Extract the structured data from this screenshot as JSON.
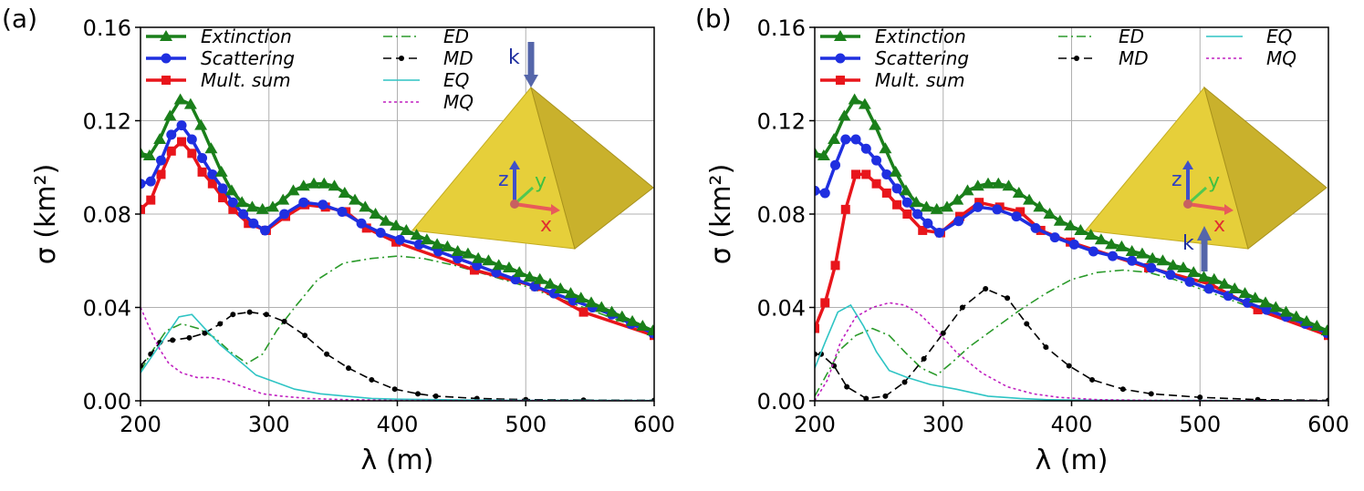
{
  "chart_data": [
    {
      "type": "line",
      "panel_label": "(a)",
      "xlabel": "λ (m)",
      "ylabel": "σ (km²)",
      "xlim": [
        200,
        600
      ],
      "ylim": [
        0,
        0.16
      ],
      "xticks": [
        "200",
        "300",
        "400",
        "500",
        "600"
      ],
      "yticks": [
        "0.00",
        "0.04",
        "0.08",
        "0.12",
        "0.16"
      ],
      "grid": true,
      "legend": "top-left and top-center, two blocks",
      "inset": {
        "k": "k",
        "x": "x",
        "y": "y",
        "z": "z",
        "k_direction": "down",
        "k_position": "top"
      },
      "series": [
        {
          "name": "Extinction",
          "color": "#1a7f1a",
          "marker": "triangle",
          "x": [
            200,
            207,
            215,
            223,
            231,
            239,
            247,
            255,
            263,
            271,
            279,
            287,
            295,
            303,
            311,
            319,
            327,
            335,
            343,
            351,
            359,
            367,
            375,
            383,
            391,
            399,
            407,
            415,
            423,
            431,
            439,
            447,
            455,
            463,
            471,
            479,
            487,
            495,
            503,
            511,
            519,
            527,
            535,
            543,
            551,
            559,
            567,
            575,
            583,
            591,
            599
          ],
          "y": [
            0.106,
            0.105,
            0.112,
            0.122,
            0.129,
            0.127,
            0.118,
            0.108,
            0.098,
            0.09,
            0.085,
            0.083,
            0.082,
            0.083,
            0.086,
            0.09,
            0.092,
            0.093,
            0.093,
            0.092,
            0.089,
            0.086,
            0.083,
            0.08,
            0.077,
            0.075,
            0.073,
            0.071,
            0.069,
            0.067,
            0.066,
            0.064,
            0.063,
            0.061,
            0.06,
            0.058,
            0.057,
            0.055,
            0.053,
            0.052,
            0.05,
            0.048,
            0.046,
            0.044,
            0.042,
            0.04,
            0.038,
            0.036,
            0.034,
            0.032,
            0.03
          ]
        },
        {
          "name": "Scattering",
          "color": "#1f2fe0",
          "marker": "circle",
          "x": [
            200,
            208,
            216,
            224,
            232,
            240,
            248,
            256,
            264,
            272,
            280,
            288,
            297,
            312,
            327,
            342,
            357,
            372,
            387,
            402,
            417,
            432,
            447,
            462,
            477,
            492,
            507,
            522,
            537,
            552,
            567,
            582,
            599
          ],
          "y": [
            0.093,
            0.094,
            0.103,
            0.114,
            0.118,
            0.112,
            0.104,
            0.097,
            0.091,
            0.085,
            0.08,
            0.076,
            0.073,
            0.08,
            0.085,
            0.084,
            0.081,
            0.076,
            0.072,
            0.069,
            0.067,
            0.064,
            0.061,
            0.058,
            0.055,
            0.052,
            0.049,
            0.046,
            0.043,
            0.04,
            0.037,
            0.033,
            0.029
          ]
        },
        {
          "name": "Mult. sum",
          "color": "#e8151b",
          "marker": "square",
          "x": [
            200,
            208,
            216,
            224,
            232,
            240,
            248,
            256,
            264,
            272,
            284,
            298,
            313,
            328,
            344,
            360,
            376,
            399,
            460,
            508,
            545,
            600
          ],
          "y": [
            0.082,
            0.086,
            0.097,
            0.107,
            0.111,
            0.106,
            0.098,
            0.093,
            0.087,
            0.082,
            0.076,
            0.073,
            0.079,
            0.084,
            0.083,
            0.081,
            0.074,
            0.068,
            0.056,
            0.049,
            0.038,
            0.028
          ]
        },
        {
          "name": "ED",
          "color": "#2a9a2a",
          "dash": "dashdot",
          "x": [
            200,
            210,
            220,
            232,
            245,
            258,
            270,
            283,
            295,
            306,
            320,
            338,
            358,
            380,
            400,
            420,
            445,
            470,
            500,
            530,
            560,
            600
          ],
          "y": [
            0.013,
            0.022,
            0.03,
            0.033,
            0.031,
            0.027,
            0.021,
            0.016,
            0.02,
            0.03,
            0.04,
            0.052,
            0.059,
            0.061,
            0.062,
            0.061,
            0.058,
            0.054,
            0.049,
            0.043,
            0.037,
            0.029
          ]
        },
        {
          "name": "MD",
          "color": "#000000",
          "dash": "dashed",
          "marker": "dot",
          "x": [
            200,
            208,
            215,
            225,
            238,
            250,
            262,
            272,
            285,
            298,
            312,
            328,
            345,
            362,
            380,
            398,
            416,
            430,
            462,
            500,
            545,
            600
          ],
          "y": [
            0.015,
            0.02,
            0.025,
            0.026,
            0.027,
            0.029,
            0.033,
            0.037,
            0.038,
            0.037,
            0.034,
            0.028,
            0.02,
            0.014,
            0.009,
            0.005,
            0.003,
            0.002,
            0.001,
            0.0005,
            0.0003,
            0.0002
          ]
        },
        {
          "name": "EQ",
          "color": "#2ec4c4",
          "dash": "solid",
          "x": [
            200,
            210,
            220,
            230,
            240,
            250,
            262,
            275,
            290,
            305,
            320,
            340,
            360,
            380,
            400,
            450,
            500,
            600
          ],
          "y": [
            0.012,
            0.02,
            0.028,
            0.036,
            0.037,
            0.031,
            0.024,
            0.018,
            0.011,
            0.008,
            0.005,
            0.003,
            0.002,
            0.001,
            0.0007,
            0.0004,
            0.0002,
            0.0001
          ]
        },
        {
          "name": "MQ",
          "color": "#c020c0",
          "dash": "dotted",
          "x": [
            200,
            208,
            215,
            222,
            232,
            244,
            255,
            265,
            275,
            285,
            295,
            310,
            330,
            360,
            400,
            450,
            500,
            600
          ],
          "y": [
            0.04,
            0.03,
            0.022,
            0.016,
            0.012,
            0.01,
            0.01,
            0.009,
            0.007,
            0.005,
            0.003,
            0.002,
            0.001,
            0.0005,
            0.0002,
            0.0001,
            0.0001,
            0.0
          ]
        }
      ]
    },
    {
      "type": "line",
      "panel_label": "(b)",
      "xlabel": "λ (m)",
      "ylabel": "σ (km²)",
      "xlim": [
        200,
        600
      ],
      "ylim": [
        0,
        0.16
      ],
      "xticks": [
        "200",
        "300",
        "400",
        "500",
        "600"
      ],
      "yticks": [
        "0.00",
        "0.04",
        "0.08",
        "0.12",
        "0.16"
      ],
      "grid": true,
      "legend": "top-left and top-center, three blocks",
      "inset": {
        "k": "k",
        "x": "x",
        "y": "y",
        "z": "z",
        "k_direction": "up",
        "k_position": "bottom"
      },
      "series": [
        {
          "name": "Extinction",
          "color": "#1a7f1a",
          "marker": "triangle",
          "x": [
            200,
            207,
            215,
            223,
            231,
            239,
            247,
            255,
            263,
            271,
            279,
            287,
            295,
            303,
            311,
            319,
            327,
            335,
            343,
            351,
            359,
            367,
            375,
            383,
            391,
            399,
            407,
            415,
            423,
            431,
            439,
            447,
            455,
            463,
            471,
            479,
            487,
            495,
            503,
            511,
            519,
            527,
            535,
            543,
            551,
            559,
            567,
            575,
            583,
            591,
            599
          ],
          "y": [
            0.106,
            0.105,
            0.112,
            0.122,
            0.129,
            0.127,
            0.118,
            0.108,
            0.098,
            0.09,
            0.085,
            0.083,
            0.082,
            0.083,
            0.086,
            0.09,
            0.092,
            0.093,
            0.093,
            0.092,
            0.089,
            0.086,
            0.083,
            0.08,
            0.077,
            0.075,
            0.073,
            0.071,
            0.069,
            0.067,
            0.066,
            0.064,
            0.063,
            0.061,
            0.06,
            0.058,
            0.057,
            0.055,
            0.053,
            0.052,
            0.05,
            0.048,
            0.046,
            0.044,
            0.042,
            0.04,
            0.038,
            0.036,
            0.034,
            0.032,
            0.03
          ]
        },
        {
          "name": "Scattering",
          "color": "#1f2fe0",
          "marker": "circle",
          "x": [
            200,
            208,
            216,
            224,
            232,
            240,
            248,
            256,
            264,
            272,
            280,
            288,
            297,
            312,
            327,
            342,
            357,
            372,
            387,
            402,
            417,
            432,
            447,
            462,
            477,
            492,
            507,
            522,
            537,
            552,
            567,
            582,
            599
          ],
          "y": [
            0.09,
            0.089,
            0.101,
            0.112,
            0.112,
            0.108,
            0.103,
            0.097,
            0.091,
            0.085,
            0.08,
            0.076,
            0.072,
            0.077,
            0.083,
            0.082,
            0.079,
            0.074,
            0.07,
            0.067,
            0.064,
            0.062,
            0.06,
            0.057,
            0.054,
            0.051,
            0.048,
            0.045,
            0.042,
            0.039,
            0.036,
            0.033,
            0.029
          ]
        },
        {
          "name": "Mult. sum",
          "color": "#e8151b",
          "marker": "square",
          "x": [
            200,
            208,
            216,
            224,
            232,
            240,
            248,
            256,
            264,
            272,
            284,
            298,
            313,
            328,
            344,
            360,
            376,
            399,
            460,
            508,
            545,
            600
          ],
          "y": [
            0.031,
            0.042,
            0.058,
            0.082,
            0.097,
            0.097,
            0.093,
            0.089,
            0.084,
            0.08,
            0.073,
            0.072,
            0.079,
            0.085,
            0.083,
            0.081,
            0.073,
            0.068,
            0.057,
            0.05,
            0.039,
            0.028
          ]
        },
        {
          "name": "ED",
          "color": "#2a9a2a",
          "dash": "dashdot",
          "x": [
            200,
            210,
            220,
            232,
            245,
            258,
            270,
            283,
            295,
            306,
            320,
            340,
            360,
            380,
            400,
            420,
            440,
            460,
            480,
            500,
            530,
            560,
            600
          ],
          "y": [
            0.002,
            0.012,
            0.022,
            0.028,
            0.031,
            0.028,
            0.021,
            0.014,
            0.011,
            0.016,
            0.023,
            0.031,
            0.039,
            0.046,
            0.052,
            0.055,
            0.056,
            0.055,
            0.052,
            0.048,
            0.042,
            0.036,
            0.028
          ]
        },
        {
          "name": "MD",
          "color": "#000000",
          "dash": "dashed",
          "marker": "dot",
          "x": [
            200,
            205,
            215,
            225,
            240,
            255,
            270,
            285,
            300,
            315,
            333,
            350,
            365,
            380,
            398,
            416,
            440,
            462,
            500,
            545,
            600
          ],
          "y": [
            0.02,
            0.02,
            0.015,
            0.006,
            0.001,
            0.002,
            0.008,
            0.018,
            0.029,
            0.04,
            0.048,
            0.044,
            0.033,
            0.023,
            0.015,
            0.009,
            0.005,
            0.003,
            0.0015,
            0.0005,
            0.0002
          ]
        },
        {
          "name": "EQ",
          "color": "#2ec4c4",
          "dash": "solid",
          "x": [
            200,
            208,
            218,
            228,
            238,
            248,
            258,
            272,
            290,
            310,
            335,
            360,
            380,
            400,
            450,
            500,
            600
          ],
          "y": [
            0.014,
            0.025,
            0.038,
            0.041,
            0.032,
            0.021,
            0.013,
            0.01,
            0.007,
            0.005,
            0.002,
            0.001,
            0.0005,
            0.0003,
            0.0001,
            0.0001,
            0.0
          ]
        },
        {
          "name": "MQ",
          "color": "#c020c0",
          "dash": "dotted",
          "x": [
            200,
            210,
            220,
            232,
            245,
            258,
            270,
            282,
            295,
            310,
            330,
            350,
            370,
            390,
            420,
            460,
            500,
            600
          ],
          "y": [
            0.0,
            0.009,
            0.025,
            0.036,
            0.04,
            0.042,
            0.041,
            0.037,
            0.03,
            0.021,
            0.012,
            0.006,
            0.003,
            0.0015,
            0.0005,
            0.0002,
            0.0001,
            0.0
          ]
        }
      ]
    }
  ]
}
